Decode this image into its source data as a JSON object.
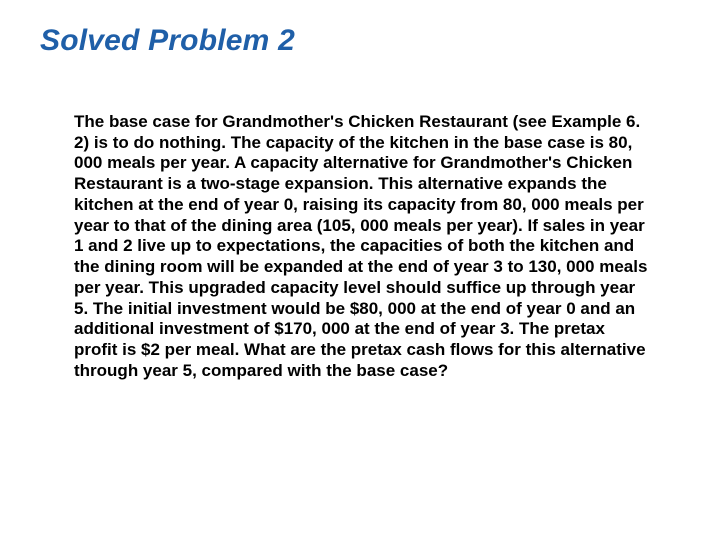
{
  "slide": {
    "title": "Solved Problem 2",
    "body_text": "The base case for Grandmother's Chicken Restaurant (see Example 6. 2) is to do nothing. The capacity of the kitchen in the base case is 80, 000 meals per year. A capacity alternative for Grandmother's Chicken Restaurant is a two-stage expansion. This alternative expands the kitchen at the end of year 0, raising its capacity from 80, 000 meals per year to that of the dining area (105, 000 meals per year). If sales in year 1 and 2 live up to expectations, the capacities of both the kitchen and the dining room will be expanded at the end of year 3 to 130, 000 meals per year. This upgraded capacity level should suffice up through year 5. The initial investment would be $80, 000 at the end of year 0 and an additional investment of $170, 000 at the end of year 3. The pretax profit is $2 per meal. What are the pretax cash flows for this alternative through year 5, compared with the base case?",
    "title_color": "#1f5fa8",
    "title_fontsize": 30,
    "body_fontsize": 17,
    "body_color": "#000000",
    "background_color": "#ffffff"
  }
}
